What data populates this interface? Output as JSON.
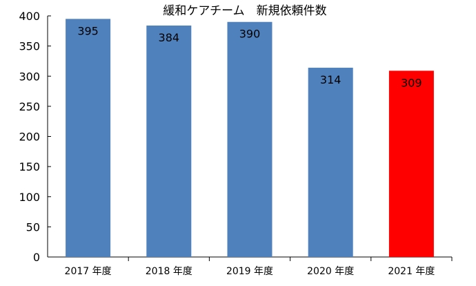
{
  "chart_data": {
    "type": "bar",
    "title": "緩和ケアチーム　新規依頼件数",
    "categories": [
      "2017 年度",
      "2018 年度",
      "2019 年度",
      "2020 年度",
      "2021 年度"
    ],
    "values": [
      395,
      384,
      390,
      314,
      309
    ],
    "data_labels": [
      "395",
      "384",
      "390",
      "314",
      "309"
    ],
    "bar_colors": [
      "#4f81bd",
      "#4f81bd",
      "#4f81bd",
      "#4f81bd",
      "#ff0000"
    ],
    "ylim": [
      0,
      400
    ],
    "yticks": [
      "0",
      "50",
      "100",
      "150",
      "200",
      "250",
      "300",
      "350",
      "400"
    ],
    "xlabel": "",
    "ylabel": "",
    "grid": false,
    "legend": "none"
  }
}
